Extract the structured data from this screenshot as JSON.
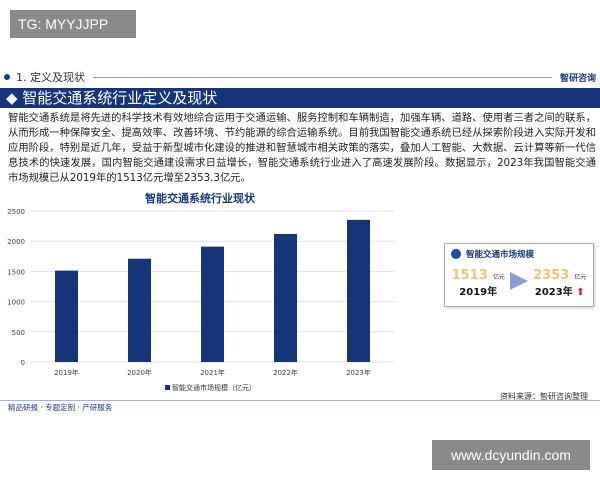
{
  "overlay_top": "TG: MYYJJPP",
  "overlay_bottom": "www.dcyundin.com",
  "section": {
    "title": "1. 定义及现状",
    "logo": "智研咨询"
  },
  "banner": "◆ 智能交通系统行业定义及现状",
  "body": "智能交通系统是将先进的科学技术有效地综合运用于交通运输、服务控制和车辆制造，加强车辆、道路、使用者三者之间的联系，从而形成一种保障安全、提高效率、改善环境、节约能源的综合运输系统。目前我国智能交通系统已经从探索阶段进入实际开发和应用阶段，特别是近几年，受益于新型城市化建设的推进和智慧城市相关政策的落实，叠加人工智能、大数据、云计算等新一代信息技术的快速发展，国内智能交通建设需求日益增长，智能交通系统行业进入了高速发展阶段。数据显示，2023年我国智能交通市场规模已从2019年的1513亿元增至2353.3亿元。",
  "chart_data": {
    "type": "bar",
    "title": "智能交通系统行业现状",
    "categories": [
      "2019年",
      "2020年",
      "2021年",
      "2022年",
      "2023年"
    ],
    "series": [
      {
        "name": "智能交通市场规模（亿元）",
        "values": [
          1513,
          1710,
          1910,
          2120,
          2353.3
        ]
      }
    ],
    "ylim": [
      0,
      2500
    ],
    "yticks": [
      0,
      500,
      1000,
      1500,
      2000,
      2500
    ],
    "grid": true,
    "legend": "bottom",
    "color": "#16347a"
  },
  "card": {
    "title": "智能交通市场规模",
    "from_value": "1513",
    "from_unit": "亿元",
    "from_year": "2019年",
    "to_value": "2353",
    "to_unit": "亿元",
    "to_year": "2023年"
  },
  "source": "资料来源：智研咨询整理",
  "footer": "精品研报 · 专题定制 · 产研服务"
}
